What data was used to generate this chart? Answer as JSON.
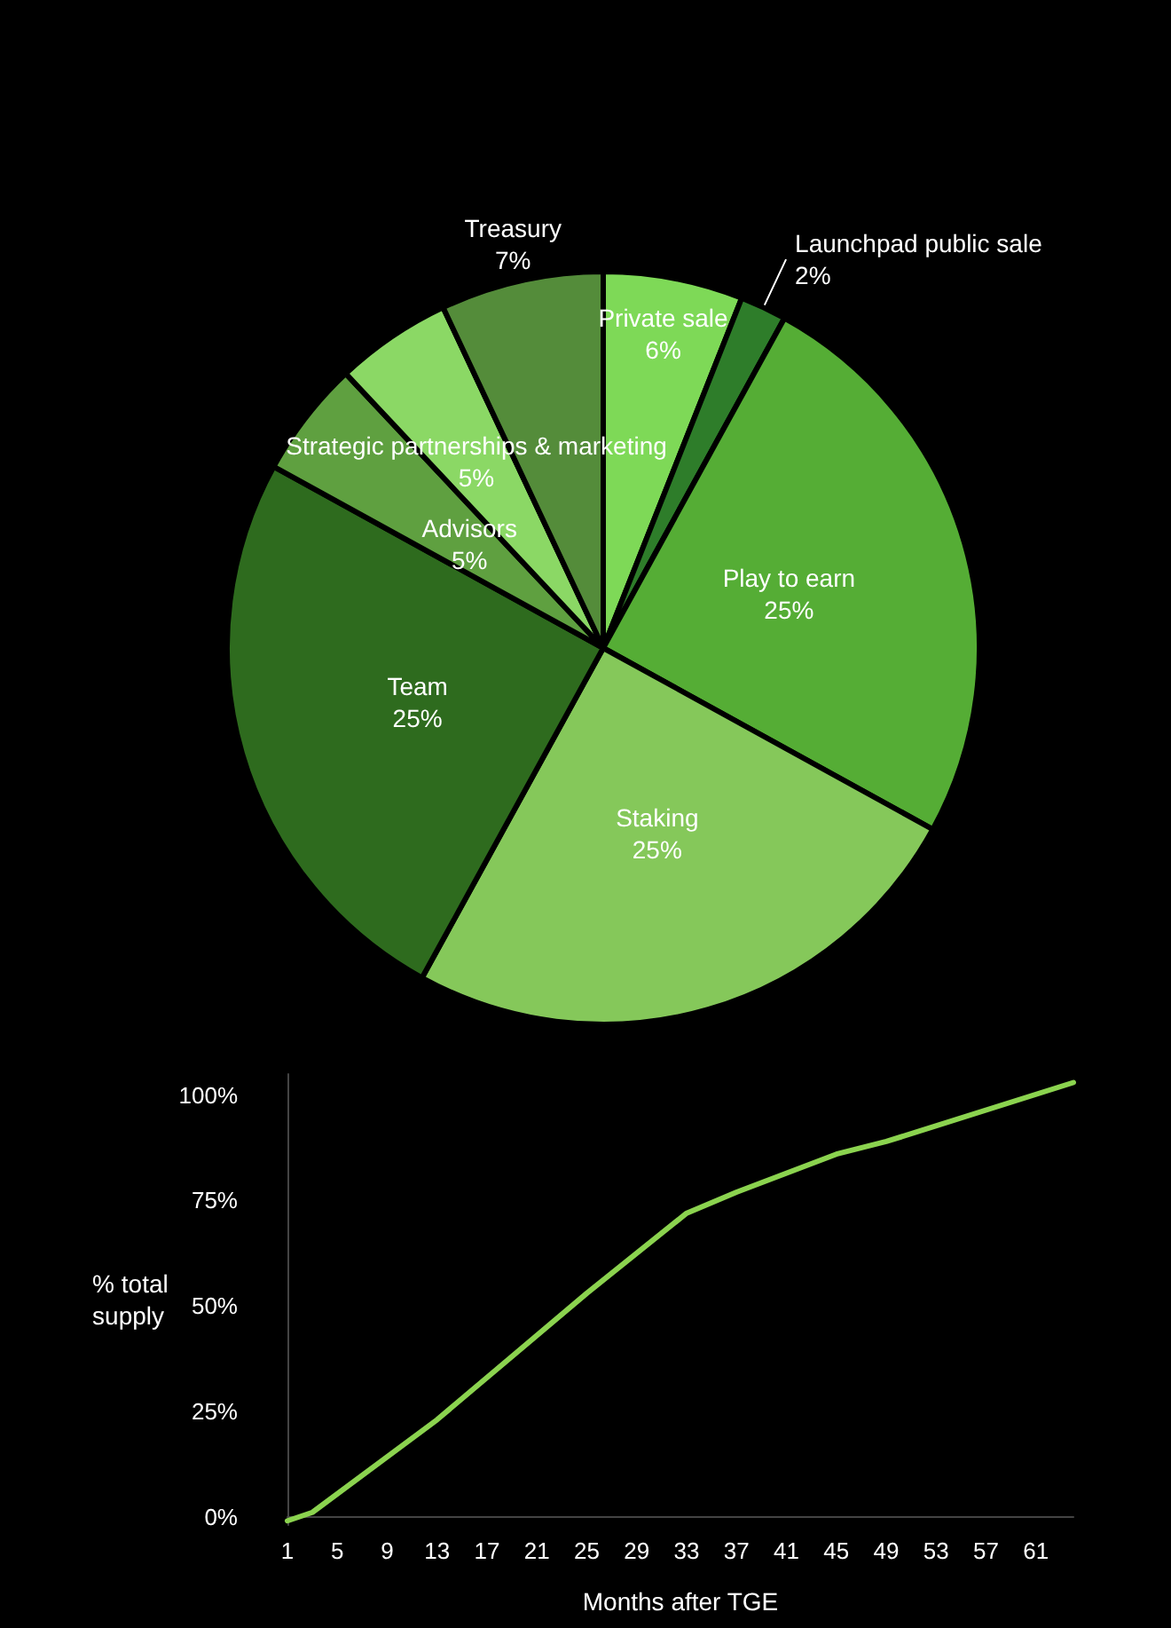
{
  "chart_data": [
    {
      "type": "pie",
      "categories": [
        "Private sale",
        "Launchpad public sale",
        "Play to earn",
        "Staking",
        "Team",
        "Advisors",
        "Strategic partnerships & marketing",
        "Treasury"
      ],
      "values": [
        6,
        2,
        25,
        25,
        25,
        5,
        5,
        7
      ],
      "value_labels": [
        "6%",
        "2%",
        "25%",
        "25%",
        "25%",
        "5%",
        "5%",
        "7%"
      ],
      "colors": [
        "#7ed957",
        "#2e7d2a",
        "#55ad35",
        "#85c85a",
        "#2e6b1e",
        "#5fa040",
        "#8bd865",
        "#548c3a"
      ],
      "legend": false
    },
    {
      "type": "line",
      "xlabel": "Months after TGE",
      "ylabel": "% total supply",
      "x": [
        1,
        3,
        13,
        25,
        33,
        37,
        45,
        49,
        64
      ],
      "series": [
        {
          "color": "#8bd34f",
          "values": [
            -1,
            1,
            23,
            53,
            72,
            77,
            86,
            89,
            103
          ]
        }
      ],
      "xlim": [
        1,
        64
      ],
      "xticks": [
        1,
        5,
        9,
        13,
        17,
        21,
        25,
        29,
        33,
        37,
        41,
        45,
        49,
        53,
        57,
        61
      ],
      "ylim": [
        -2,
        105
      ],
      "yticks": [
        {
          "value": 0,
          "label": "0%"
        },
        {
          "value": 25,
          "label": "25%"
        },
        {
          "value": 50,
          "label": "50%"
        },
        {
          "value": 75,
          "label": "75%"
        },
        {
          "value": 100,
          "label": "100%"
        }
      ],
      "grid": false,
      "legend": false,
      "marker": "none",
      "line_style": "solid"
    }
  ]
}
